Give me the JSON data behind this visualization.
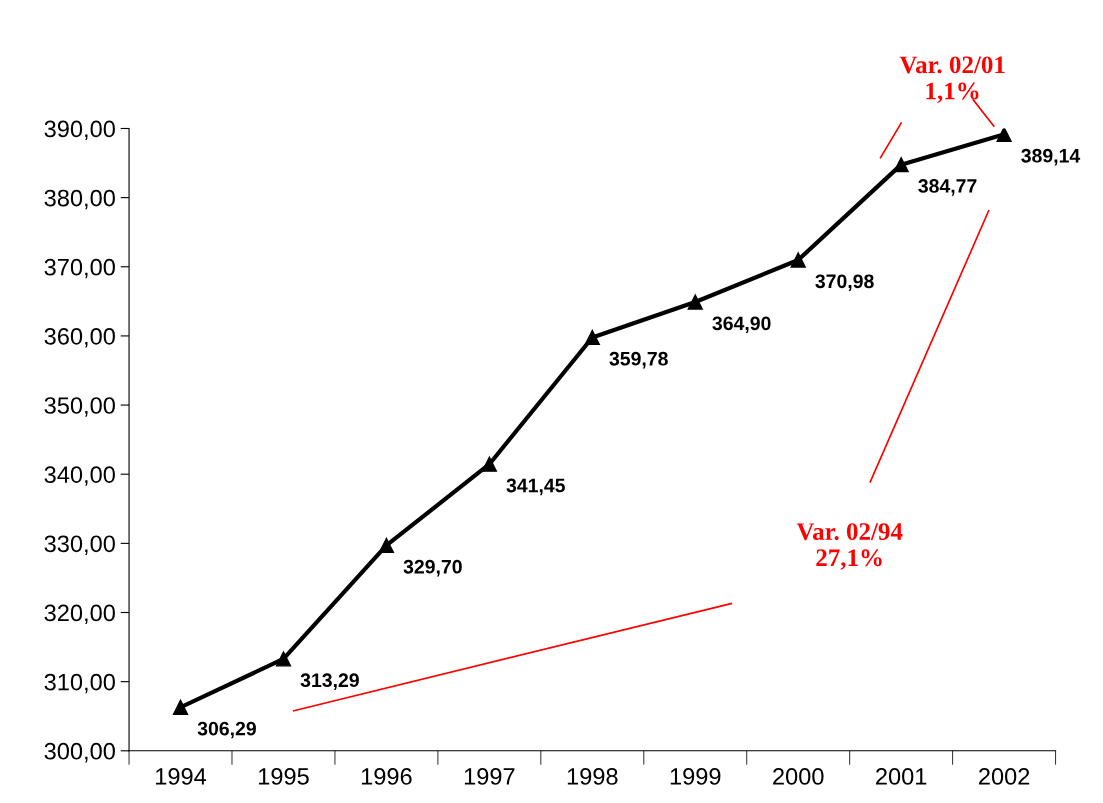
{
  "chart_data": {
    "type": "line",
    "categories": [
      "1994",
      "1995",
      "1996",
      "1997",
      "1998",
      "1999",
      "2000",
      "2001",
      "2002"
    ],
    "series": [
      {
        "color": "#000000",
        "values": [
          306.29,
          313.29,
          329.7,
          341.45,
          359.78,
          364.9,
          370.98,
          384.77,
          389.14
        ],
        "value_labels": [
          "306,29",
          "313,29",
          "329,70",
          "341,45",
          "359,78",
          "364,90",
          "370,98",
          "384,77",
          "389,14"
        ]
      }
    ],
    "ylim": [
      300,
      390
    ],
    "yticks": [
      {
        "value": 300,
        "label": "300,00"
      },
      {
        "value": 310,
        "label": "310,00"
      },
      {
        "value": 320,
        "label": "320,00"
      },
      {
        "value": 330,
        "label": "330,00"
      },
      {
        "value": 340,
        "label": "340,00"
      },
      {
        "value": 350,
        "label": "350,00"
      },
      {
        "value": 360,
        "label": "360,00"
      },
      {
        "value": 370,
        "label": "370,00"
      },
      {
        "value": 380,
        "label": "380,00"
      },
      {
        "value": 390,
        "label": "390,00"
      }
    ],
    "marker": "triangle",
    "line_style": "solid",
    "grid": false,
    "annotations": [
      "Var. 02/01\n1,1%",
      "Var. 02/94\n27,1%"
    ]
  }
}
